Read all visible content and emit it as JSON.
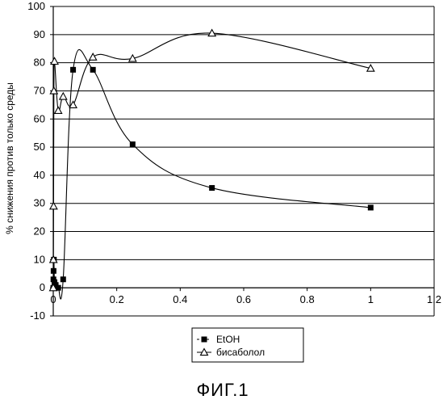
{
  "chart_data": {
    "type": "line",
    "title": "",
    "xlabel": "",
    "ylabel": "% снижения против только среды",
    "xlim": [
      0,
      1.2
    ],
    "ylim": [
      -10,
      100
    ],
    "x_ticks": [
      "0",
      "0.2",
      "0.4",
      "0.6",
      "0.8",
      "1",
      "1.2"
    ],
    "y_ticks": [
      "-10",
      "0",
      "10",
      "20",
      "30",
      "40",
      "50",
      "60",
      "70",
      "80",
      "90",
      "100"
    ],
    "grid": "horizontal",
    "legend_position": "bottom-center",
    "series": [
      {
        "name": "EtOH",
        "marker": "square",
        "color": "#000000",
        "points": [
          {
            "x": 0.0,
            "y": 0
          },
          {
            "x": 0.0005,
            "y": 3
          },
          {
            "x": 0.001,
            "y": 6
          },
          {
            "x": 0.002,
            "y": 10
          },
          {
            "x": 0.0039,
            "y": 2
          },
          {
            "x": 0.0078,
            "y": 1
          },
          {
            "x": 0.0156,
            "y": 0
          },
          {
            "x": 0.03125,
            "y": 3
          },
          {
            "x": 0.0625,
            "y": 77.5
          },
          {
            "x": 0.125,
            "y": 77.5
          },
          {
            "x": 0.25,
            "y": 51
          },
          {
            "x": 0.5,
            "y": 35.5
          },
          {
            "x": 1.0,
            "y": 28.5
          }
        ]
      },
      {
        "name": "бисаболол",
        "marker": "triangle",
        "color": "#000000",
        "points": [
          {
            "x": 0.0,
            "y": 0
          },
          {
            "x": 0.0005,
            "y": 10
          },
          {
            "x": 0.001,
            "y": 29
          },
          {
            "x": 0.002,
            "y": 70
          },
          {
            "x": 0.0039,
            "y": 80.5
          },
          {
            "x": 0.0156,
            "y": 63
          },
          {
            "x": 0.03125,
            "y": 68
          },
          {
            "x": 0.0625,
            "y": 65
          },
          {
            "x": 0.125,
            "y": 82
          },
          {
            "x": 0.25,
            "y": 81.5
          },
          {
            "x": 0.5,
            "y": 90.5
          },
          {
            "x": 1.0,
            "y": 78
          }
        ]
      }
    ]
  },
  "caption": "ФИГ.1"
}
